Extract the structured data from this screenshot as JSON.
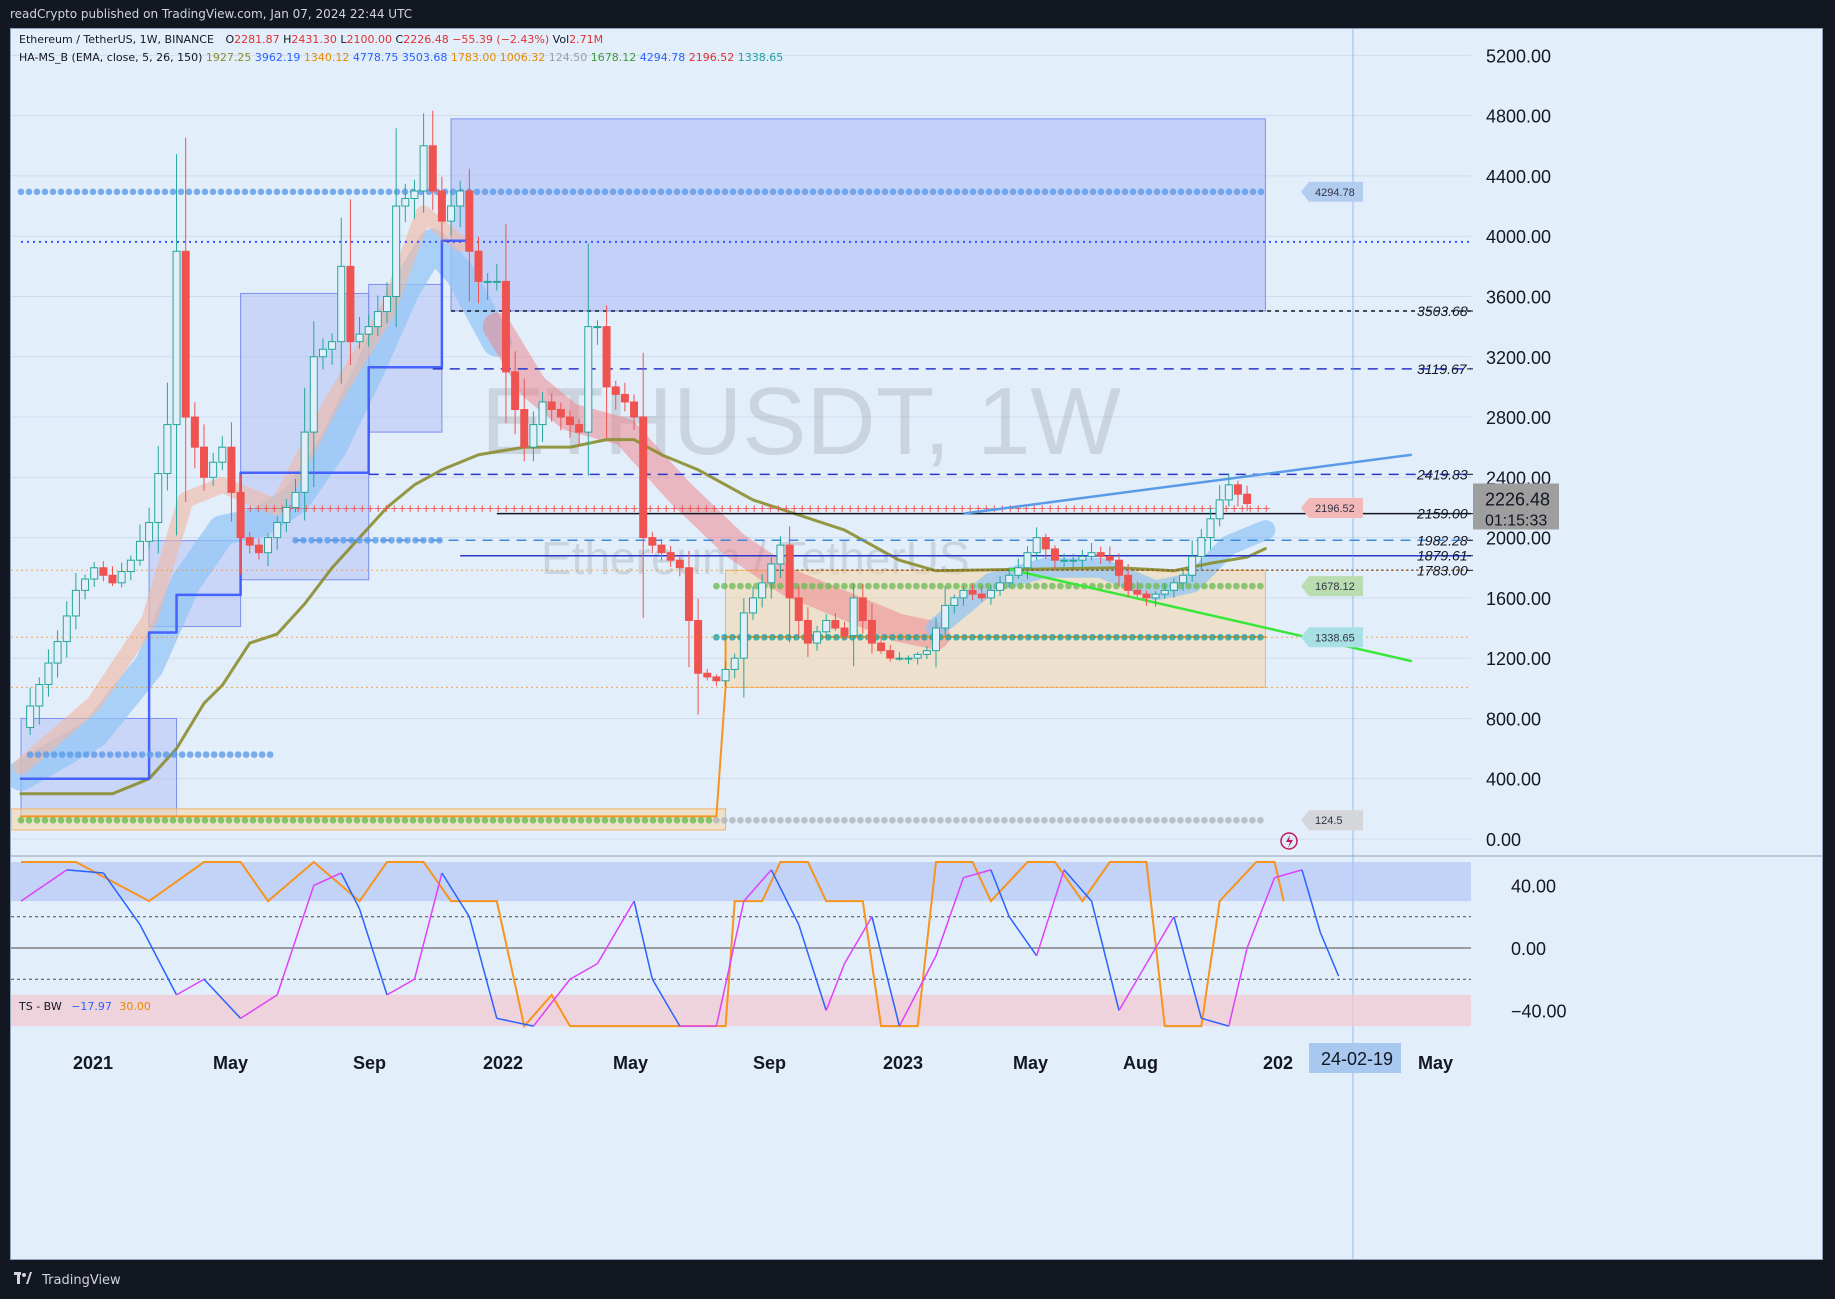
{
  "header": {
    "published": "readCrypto published on TradingView.com, Jan 07, 2024 22:44 UTC"
  },
  "footer": {
    "brand": "TradingView"
  },
  "symbol_legend": {
    "name": "Ethereum / TetherUS, 1W, BINANCE",
    "o_label": "O",
    "o": "2281.87",
    "h_label": "H",
    "h": "2431.30",
    "l_label": "L",
    "l": "2100.00",
    "c_label": "C",
    "c": "2226.48",
    "change": "−55.39 (−2.43%)",
    "vol_label": "Vol",
    "vol": "2.71M"
  },
  "indicator_legend": {
    "name": "HA-MS_B (EMA, close, 5, 26, 150)",
    "values": [
      "1927.25",
      "3962.19",
      "1340.12",
      "4778.75",
      "3503.68",
      "1783.00",
      "1006.32",
      "124.50",
      "1678.12",
      "4294.78",
      "2196.52",
      "1338.65"
    ],
    "colors": [
      "#8a8d2c",
      "#2962ff",
      "#e68a00",
      "#2962ff",
      "#2962ff",
      "#e68a00",
      "#e68a00",
      "#9e9e9e",
      "#3c9a3c",
      "#2962ff",
      "#e03131",
      "#1aa3a3"
    ]
  },
  "watermark": {
    "ticker": "ETHUSDT, 1W",
    "name": "Ethereum / TetherUS"
  },
  "price_axis": [
    "5200.00",
    "4800.00",
    "4400.00",
    "4000.00",
    "3600.00",
    "3200.00",
    "2800.00",
    "2400.00",
    "2000.00",
    "1600.00",
    "1200.00",
    "800.00",
    "400.00",
    "0.00"
  ],
  "current_price": {
    "price": "2226.48",
    "countdown": "01:15:33"
  },
  "level_labels": [
    {
      "value": "3503.68",
      "price": 3503.68
    },
    {
      "value": "3119.67",
      "price": 3119.67
    },
    {
      "value": "2419.83",
      "price": 2419.83
    },
    {
      "value": "2159.00",
      "price": 2159.0
    },
    {
      "value": "1982.28",
      "price": 1982.28
    },
    {
      "value": "1879.61",
      "price": 1879.61
    },
    {
      "value": "1783.00",
      "price": 1783.0
    }
  ],
  "tags": [
    {
      "text": "4294.78",
      "price": 4294.78,
      "bg": "#b3cdf0",
      "fg": "#334"
    },
    {
      "text": "2196.52",
      "price": 2196.52,
      "bg": "#f3b8b8",
      "fg": "#334"
    },
    {
      "text": "1678.12",
      "price": 1678.12,
      "bg": "#b9dcb0",
      "fg": "#334"
    },
    {
      "text": "1338.65",
      "price": 1338.65,
      "bg": "#a9e0e6",
      "fg": "#334"
    },
    {
      "text": "124.5",
      "price": 124.5,
      "bg": "#d4d6da",
      "fg": "#334"
    }
  ],
  "time_axis": [
    "2021",
    "May",
    "Sep",
    "2022",
    "May",
    "Sep",
    "2023",
    "May",
    "Aug",
    "202",
    "May"
  ],
  "crosshair_date": "24-02-19",
  "oscillator": {
    "name": "TS - BW",
    "v1": "−17.97",
    "v2": "30.00",
    "axis": [
      "40.00",
      "0.00",
      "−40.00"
    ]
  },
  "colors": {
    "background": "#e3eefb",
    "up_candle": "#26a69a",
    "down_candle": "#ef5350",
    "accent_blue": "#2962ff",
    "orange": "#f7941d",
    "magenta": "#e040fb",
    "green_line": "#39e639"
  },
  "chart_data": {
    "type": "candlestick",
    "title": "Ethereum / TetherUS, 1W, BINANCE",
    "ylim": [
      0,
      5200
    ],
    "x_start": "2020-12-28",
    "interval": "1W",
    "approx_close_path": [
      [
        0,
        740
      ],
      [
        4,
        1310
      ],
      [
        6,
        1650
      ],
      [
        8,
        1800
      ],
      [
        10,
        1700
      ],
      [
        12,
        1850
      ],
      [
        14,
        2100
      ],
      [
        16,
        2750
      ],
      [
        17,
        3900
      ],
      [
        18,
        2800
      ],
      [
        20,
        2400
      ],
      [
        22,
        2600
      ],
      [
        24,
        2000
      ],
      [
        26,
        1900
      ],
      [
        28,
        2100
      ],
      [
        30,
        2300
      ],
      [
        31,
        2700
      ],
      [
        32,
        3200
      ],
      [
        34,
        3300
      ],
      [
        35,
        3800
      ],
      [
        36,
        3300
      ],
      [
        38,
        3400
      ],
      [
        40,
        3600
      ],
      [
        41,
        4200
      ],
      [
        43,
        4300
      ],
      [
        44,
        4600
      ],
      [
        45,
        4300
      ],
      [
        46,
        4100
      ],
      [
        48,
        4300
      ],
      [
        49,
        3900
      ],
      [
        50,
        3700
      ],
      [
        52,
        3700
      ],
      [
        53,
        3100
      ],
      [
        55,
        2600
      ],
      [
        57,
        2900
      ],
      [
        59,
        2800
      ],
      [
        61,
        2700
      ],
      [
        62,
        3400
      ],
      [
        63,
        3400
      ],
      [
        64,
        3000
      ],
      [
        66,
        2900
      ],
      [
        67,
        2800
      ],
      [
        68,
        2000
      ],
      [
        70,
        1900
      ],
      [
        72,
        1800
      ],
      [
        74,
        1100
      ],
      [
        76,
        1050
      ],
      [
        78,
        1200
      ],
      [
        79,
        1500
      ],
      [
        81,
        1700
      ],
      [
        83,
        1950
      ],
      [
        84,
        1600
      ],
      [
        86,
        1300
      ],
      [
        88,
        1450
      ],
      [
        90,
        1350
      ],
      [
        91,
        1600
      ],
      [
        93,
        1300
      ],
      [
        95,
        1200
      ],
      [
        97,
        1200
      ],
      [
        99,
        1250
      ],
      [
        101,
        1550
      ],
      [
        103,
        1650
      ],
      [
        105,
        1600
      ],
      [
        107,
        1700
      ],
      [
        109,
        1800
      ],
      [
        111,
        2000
      ],
      [
        113,
        1850
      ],
      [
        115,
        1850
      ],
      [
        117,
        1900
      ],
      [
        119,
        1850
      ],
      [
        121,
        1650
      ],
      [
        123,
        1600
      ],
      [
        125,
        1650
      ],
      [
        127,
        1750
      ],
      [
        129,
        2000
      ],
      [
        131,
        2250
      ],
      [
        132,
        2350
      ],
      [
        134,
        2226
      ]
    ],
    "horizontal_levels": [
      4294.78,
      3962.19,
      3503.68,
      3119.67,
      2419.83,
      2196.52,
      2159.0,
      1982.28,
      1879.61,
      1783.0,
      1678.12,
      1338.65,
      124.5
    ],
    "boxes": [
      {
        "from": 47,
        "to": 136,
        "low": 3503.68,
        "high": 4778.75,
        "color": "blue"
      },
      {
        "from": 77,
        "to": 136,
        "low": 1006.32,
        "high": 1783.0,
        "color": "orange"
      }
    ],
    "trendlines": [
      {
        "from": [
          103,
          2159
        ],
        "to": [
          152,
          2550
        ],
        "color": "#5a9be8"
      },
      {
        "from": [
          108,
          1790
        ],
        "to": [
          152,
          1180
        ],
        "color": "#39e639"
      }
    ],
    "oscillator": {
      "name": "TS - BW",
      "ylim": [
        -50,
        55
      ],
      "orange_path": [
        [
          0,
          55
        ],
        [
          6,
          55
        ],
        [
          14,
          30
        ],
        [
          20,
          55
        ],
        [
          24,
          55
        ],
        [
          27,
          30
        ],
        [
          32,
          55
        ],
        [
          37,
          30
        ],
        [
          40,
          55
        ],
        [
          44,
          55
        ],
        [
          47,
          30
        ],
        [
          52,
          30
        ],
        [
          55,
          -50
        ],
        [
          58,
          -30
        ],
        [
          60,
          -50
        ],
        [
          63,
          -50
        ],
        [
          66,
          -50
        ],
        [
          68,
          -50
        ],
        [
          72,
          -50
        ],
        [
          77,
          -50
        ],
        [
          78,
          30
        ],
        [
          81,
          30
        ],
        [
          83,
          55
        ],
        [
          86,
          55
        ],
        [
          88,
          30
        ],
        [
          92,
          30
        ],
        [
          94,
          -50
        ],
        [
          98,
          -50
        ],
        [
          100,
          55
        ],
        [
          104,
          55
        ],
        [
          106,
          30
        ],
        [
          110,
          55
        ],
        [
          113,
          55
        ],
        [
          116,
          30
        ],
        [
          119,
          55
        ],
        [
          123,
          55
        ],
        [
          125,
          -50
        ],
        [
          129,
          -50
        ],
        [
          131,
          30
        ],
        [
          135,
          55
        ],
        [
          137,
          55
        ],
        [
          138,
          30
        ]
      ],
      "line_path": [
        [
          0,
          30
        ],
        [
          5,
          50
        ],
        [
          9,
          48
        ],
        [
          13,
          15
        ],
        [
          17,
          -30
        ],
        [
          20,
          -20
        ],
        [
          24,
          -45
        ],
        [
          28,
          -30
        ],
        [
          32,
          40
        ],
        [
          35,
          48
        ],
        [
          37,
          25
        ],
        [
          40,
          -30
        ],
        [
          43,
          -20
        ],
        [
          46,
          48
        ],
        [
          49,
          20
        ],
        [
          52,
          -45
        ],
        [
          56,
          -50
        ],
        [
          60,
          -20
        ],
        [
          63,
          -10
        ],
        [
          67,
          30
        ],
        [
          69,
          -20
        ],
        [
          72,
          -50
        ],
        [
          76,
          -50
        ],
        [
          79,
          30
        ],
        [
          82,
          50
        ],
        [
          85,
          15
        ],
        [
          88,
          -40
        ],
        [
          90,
          -10
        ],
        [
          93,
          20
        ],
        [
          96,
          -50
        ],
        [
          100,
          -5
        ],
        [
          103,
          45
        ],
        [
          106,
          50
        ],
        [
          108,
          20
        ],
        [
          111,
          -5
        ],
        [
          114,
          50
        ],
        [
          117,
          30
        ],
        [
          120,
          -40
        ],
        [
          123,
          -10
        ],
        [
          126,
          20
        ],
        [
          129,
          -45
        ],
        [
          132,
          -50
        ],
        [
          134,
          0
        ],
        [
          137,
          45
        ],
        [
          140,
          50
        ],
        [
          142,
          10
        ],
        [
          144,
          -18
        ]
      ]
    }
  }
}
